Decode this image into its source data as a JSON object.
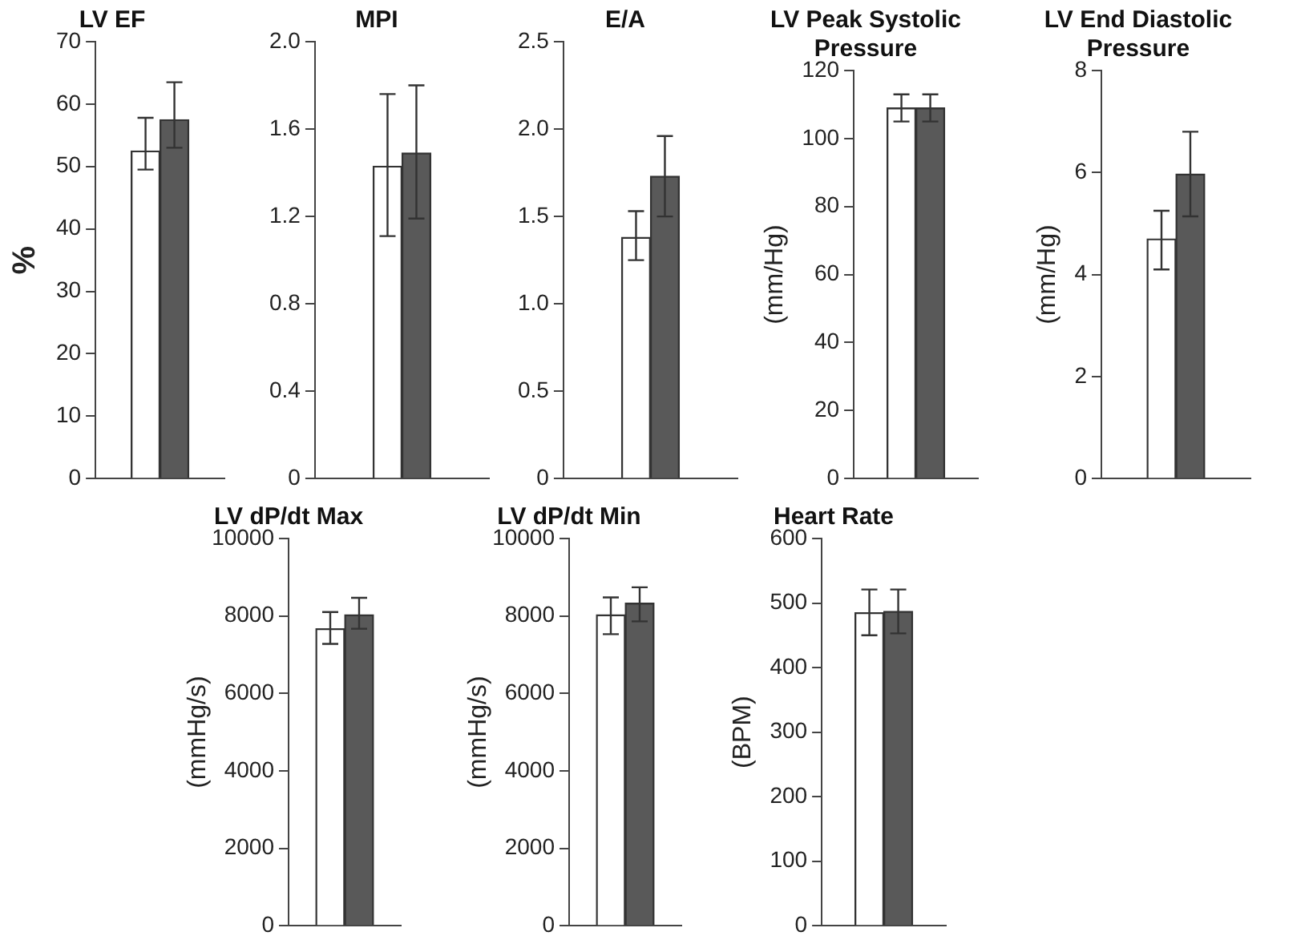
{
  "chart_data": [
    {
      "type": "bar",
      "title": "LV EF",
      "ylabel": "%",
      "categories": [
        null
      ],
      "tick_labels": "y",
      "grid": false,
      "legend": false,
      "ylim": [
        0,
        70
      ],
      "yticks": [
        0,
        10,
        20,
        30,
        40,
        50,
        60,
        70
      ],
      "series": [
        {
          "color": "#ffffff",
          "values": [
            52.5
          ],
          "errors": [
            [
              49.5,
              57.8
            ]
          ]
        },
        {
          "color": "#595959",
          "values": [
            57.5
          ],
          "errors": [
            [
              53,
              63.5
            ]
          ]
        }
      ]
    },
    {
      "type": "bar",
      "title": "MPI",
      "categories": [
        null
      ],
      "tick_labels": "y",
      "grid": false,
      "legend": false,
      "ylim": [
        0,
        2
      ],
      "yticks": [
        0,
        {
          "value": 0.4,
          "label": "0.4"
        },
        {
          "value": 0.8,
          "label": "0.8"
        },
        {
          "value": 1.2,
          "label": "1.2"
        },
        {
          "value": 1.6,
          "label": "1.6"
        },
        {
          "value": 2,
          "label": "2.0"
        }
      ],
      "series": [
        {
          "color": "#ffffff",
          "values": [
            1.43
          ],
          "errors": [
            [
              1.11,
              1.76
            ]
          ]
        },
        {
          "color": "#595959",
          "values": [
            1.49
          ],
          "errors": [
            [
              1.19,
              1.8
            ]
          ]
        }
      ]
    },
    {
      "type": "bar",
      "title": "E/A",
      "categories": [
        null
      ],
      "tick_labels": "y",
      "grid": false,
      "legend": false,
      "ylim": [
        0,
        2.5
      ],
      "yticks": [
        0,
        0.5,
        {
          "value": 1,
          "label": "1.0"
        },
        1.5,
        {
          "value": 2,
          "label": "2.0"
        },
        2.5
      ],
      "series": [
        {
          "color": "#ffffff",
          "values": [
            1.38
          ],
          "errors": [
            [
              1.25,
              1.53
            ]
          ]
        },
        {
          "color": "#595959",
          "values": [
            1.73
          ],
          "errors": [
            [
              1.5,
              1.96
            ]
          ]
        }
      ]
    },
    {
      "type": "bar",
      "title": "LV Peak Systolic Pressure",
      "ylabel": "(mm/Hg)",
      "categories": [
        null
      ],
      "tick_labels": "y",
      "grid": false,
      "legend": false,
      "ylim": [
        0,
        120
      ],
      "yticks": [
        0,
        20,
        40,
        60,
        80,
        100,
        120
      ],
      "series": [
        {
          "color": "#ffffff",
          "values": [
            109
          ],
          "errors": [
            [
              105,
              113
            ]
          ]
        },
        {
          "color": "#595959",
          "values": [
            109
          ],
          "errors": [
            [
              105,
              113
            ]
          ]
        }
      ]
    },
    {
      "type": "bar",
      "title": "LV End Diastolic Pressure",
      "ylabel": "(mm/Hg)",
      "categories": [
        null
      ],
      "tick_labels": "y",
      "grid": false,
      "legend": false,
      "ylim": [
        0,
        8
      ],
      "yticks": [
        0,
        2,
        4,
        6,
        8
      ],
      "series": [
        {
          "color": "#ffffff",
          "values": [
            4.7
          ],
          "errors": [
            [
              4.1,
              5.25
            ]
          ]
        },
        {
          "color": "#595959",
          "values": [
            5.97
          ],
          "errors": [
            [
              5.14,
              6.8
            ]
          ]
        }
      ]
    },
    {
      "type": "bar",
      "title": "LV dP/dt Max",
      "ylabel": "(mmHg/s)",
      "categories": [
        null
      ],
      "tick_labels": "y",
      "grid": false,
      "legend": false,
      "ylim": [
        0,
        10000
      ],
      "yticks": [
        0,
        2000,
        4000,
        6000,
        8000,
        10000
      ],
      "series": [
        {
          "color": "#ffffff",
          "values": [
            7670
          ],
          "errors": [
            [
              7280,
              8100
            ]
          ]
        },
        {
          "color": "#595959",
          "values": [
            8030
          ],
          "errors": [
            [
              7670,
              8470
            ]
          ]
        }
      ]
    },
    {
      "type": "bar",
      "title": "LV dP/dt Min",
      "ylabel": "(mmHg/s)",
      "categories": [
        null
      ],
      "tick_labels": "y",
      "grid": false,
      "legend": false,
      "ylim": [
        0,
        10000
      ],
      "yticks": [
        0,
        2000,
        4000,
        6000,
        8000,
        10000
      ],
      "series": [
        {
          "color": "#ffffff",
          "values": [
            8030
          ],
          "errors": [
            [
              7530,
              8480
            ]
          ]
        },
        {
          "color": "#595959",
          "values": [
            8330
          ],
          "errors": [
            [
              7860,
              8740
            ]
          ]
        }
      ]
    },
    {
      "type": "bar",
      "title": "Heart Rate",
      "ylabel": "(BPM)",
      "categories": [
        null
      ],
      "tick_labels": "y",
      "grid": false,
      "legend": false,
      "ylim": [
        0,
        600
      ],
      "yticks": [
        0,
        100,
        200,
        300,
        400,
        500,
        600
      ],
      "series": [
        {
          "color": "#ffffff",
          "values": [
            485
          ],
          "errors": [
            [
              450,
              521
            ]
          ]
        },
        {
          "color": "#595959",
          "values": [
            487
          ],
          "errors": [
            [
              453,
              521
            ]
          ]
        }
      ]
    }
  ]
}
